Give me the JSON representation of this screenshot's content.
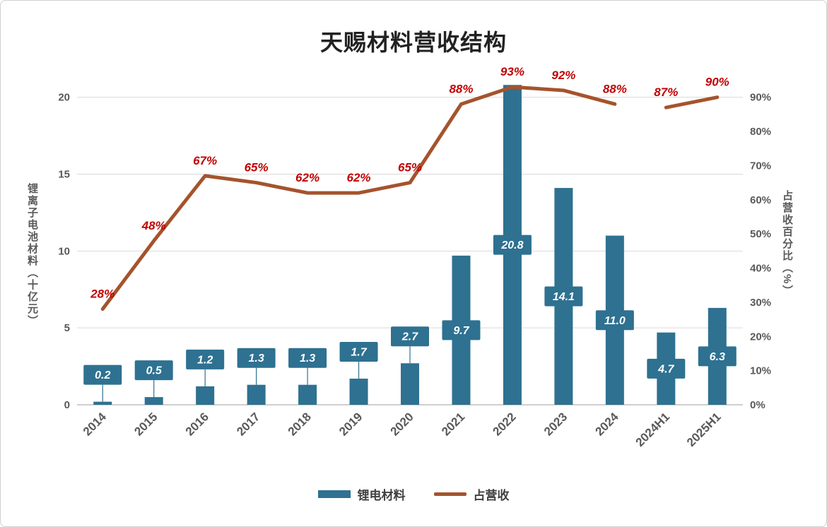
{
  "page": {
    "background": "#FFFFFF",
    "border_color": "#D0D0D0"
  },
  "chart": {
    "title": "天赐材料营收结构",
    "left_axis_title": "锂离子电池材料（十亿元）",
    "right_axis_title": "占营收百分比（%）",
    "legend_bar_label": "锂电材料",
    "legend_line_label": "占营收"
  },
  "chart_data": {
    "type": "bar",
    "combo": "bar+line",
    "title": "天赐材料营收结构",
    "categories": [
      "2014",
      "2015",
      "2016",
      "2017",
      "2018",
      "2019",
      "2020",
      "2021",
      "2022",
      "2023",
      "2024",
      "2024H1",
      "2025H1"
    ],
    "series": [
      {
        "name": "锂电材料",
        "type": "bar",
        "axis": "left",
        "color": "#2E7191",
        "values": [
          0.2,
          0.5,
          1.2,
          1.3,
          1.3,
          1.7,
          2.7,
          9.7,
          20.8,
          14.1,
          11.0,
          4.7,
          6.3
        ],
        "labels": [
          "0.2",
          "0.5",
          "1.2",
          "1.3",
          "1.3",
          "1.7",
          "2.7",
          "9.7",
          "20.8",
          "14.1",
          "11.0",
          "4.7",
          "6.3"
        ],
        "label_style": "white italic text in bar-colored callout boxes"
      },
      {
        "name": "占营收",
        "type": "line",
        "axis": "right",
        "color": "#A5532C",
        "values": [
          28,
          48,
          67,
          65,
          62,
          62,
          65,
          88,
          93,
          92,
          88,
          87,
          90
        ],
        "labels": [
          "28%",
          "48%",
          "67%",
          "65%",
          "62%",
          "62%",
          "65%",
          "88%",
          "93%",
          "92%",
          "88%",
          "87%",
          "90%"
        ],
        "label_color": "#C00000",
        "segments": [
          [
            0,
            10
          ],
          [
            11,
            12
          ]
        ]
      }
    ],
    "left_axis": {
      "title": "锂离子电池材料（十亿元）",
      "ticks": [
        0,
        5,
        10,
        15,
        20
      ],
      "range": [
        0,
        21.5
      ]
    },
    "right_axis": {
      "title": "占营收百分比（%）",
      "tick_values": [
        0,
        10,
        20,
        30,
        40,
        50,
        60,
        70,
        80,
        90
      ],
      "tick_labels": [
        "0%",
        "10%",
        "20%",
        "30%",
        "40%",
        "50%",
        "60%",
        "70%",
        "80%",
        "90%"
      ],
      "range": [
        0,
        96.75
      ]
    },
    "grid": true,
    "gridline_color": "#D9D9D9",
    "legend_position": "bottom"
  }
}
